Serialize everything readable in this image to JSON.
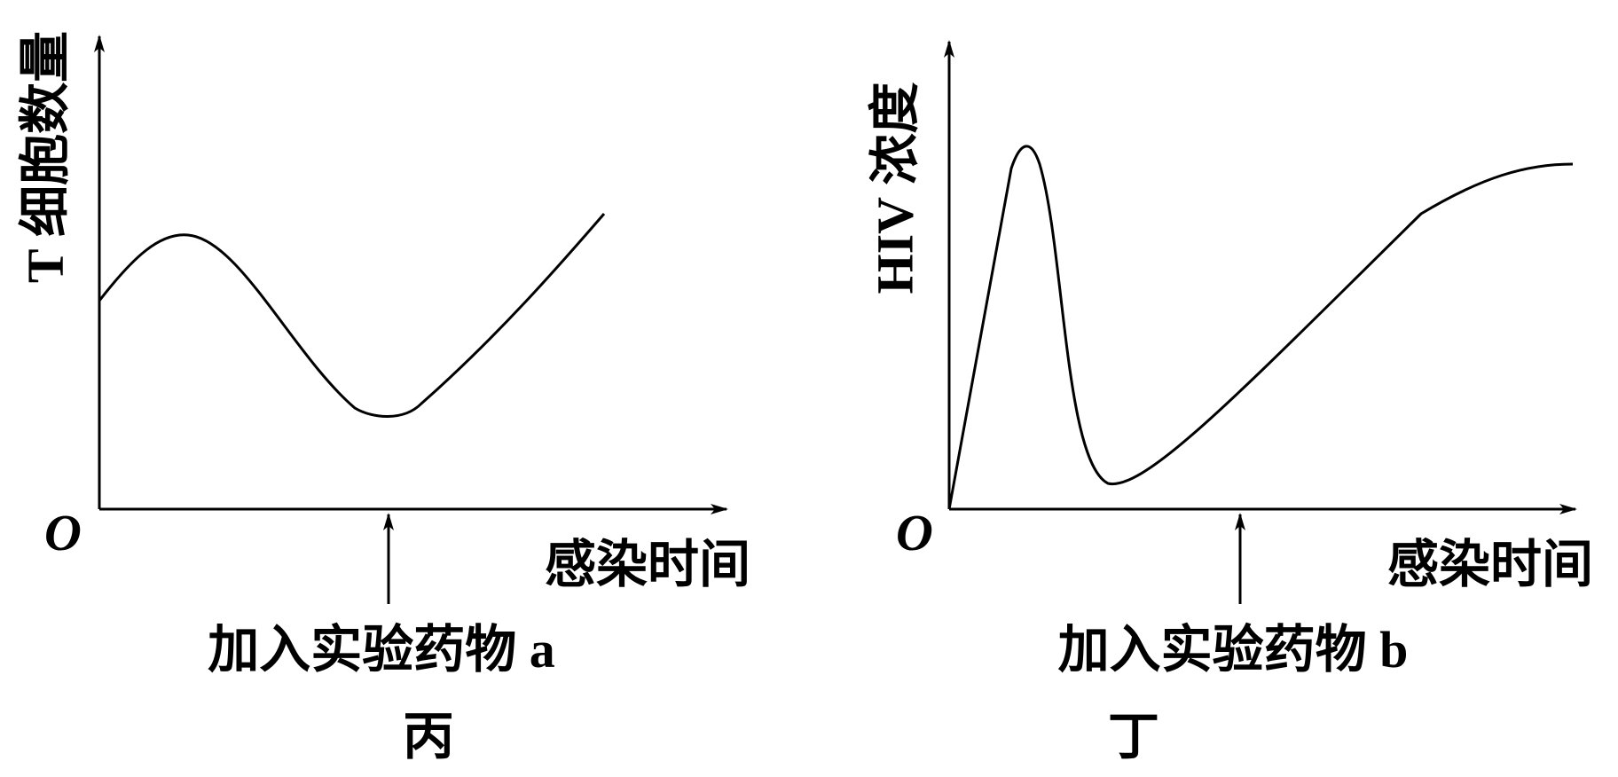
{
  "panels": [
    {
      "y_label": "T 细胞数量",
      "x_label": "感染时间",
      "origin": "O",
      "annotation": "加入实验药物 a",
      "caption": "丙"
    },
    {
      "y_label": "HIV 浓度",
      "x_label": "感染时间",
      "origin": "O",
      "annotation": "加入实验药物 b",
      "caption": "丁"
    }
  ]
}
